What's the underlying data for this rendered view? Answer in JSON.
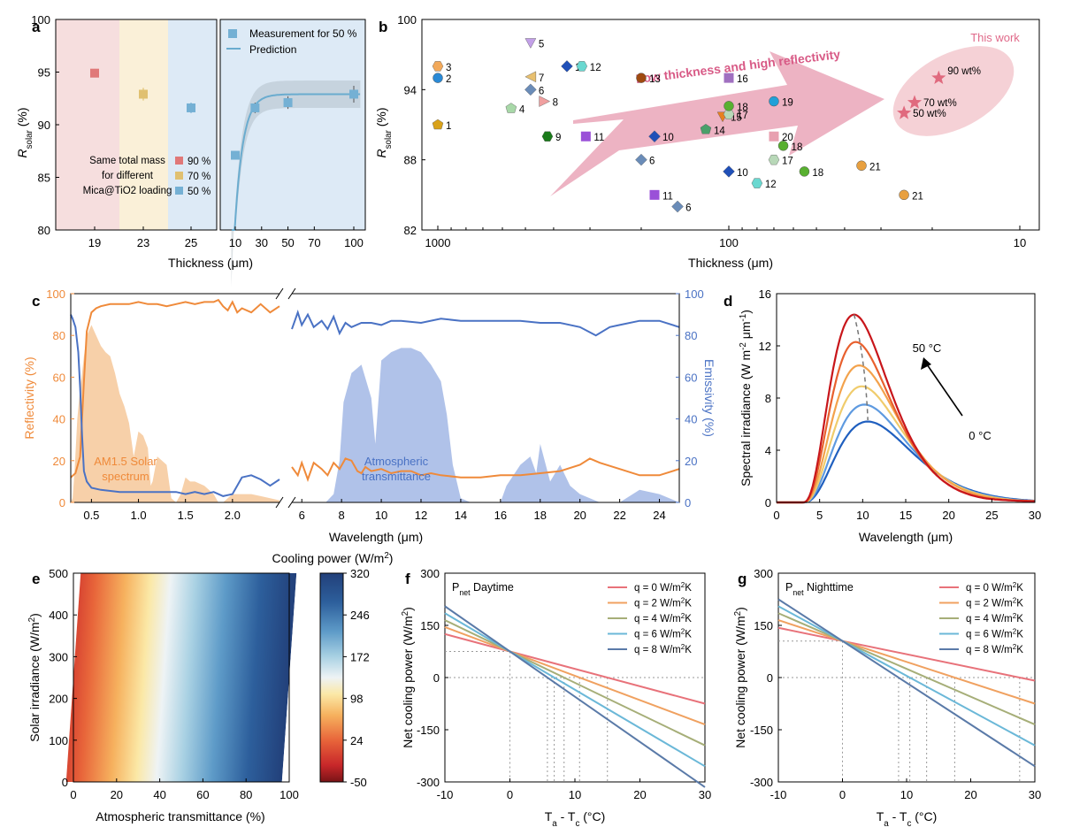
{
  "colors": {
    "orange": "#ef8a3a",
    "blue": "#4a72c4",
    "pink_band": "#f6dede",
    "yellow_band": "#faf0d8",
    "blue_band": "#ddeaf6",
    "cyan": "#6aaccf",
    "marker_red": "#e07878",
    "marker_yellow": "#e0c070",
    "marker_blue": "#74b0d4",
    "arrow_pink": "#e8a0b4",
    "star": "#e06a7e"
  },
  "panel_labels": [
    "a",
    "b",
    "c",
    "d",
    "e",
    "f",
    "g"
  ],
  "chart_data": [
    {
      "id": "a",
      "type": "scatter",
      "left": {
        "xlabel": "Thickness (μm)",
        "ylabel": "R̄solar (%)",
        "ylim": [
          80,
          100
        ],
        "yticks": [
          "80",
          "85",
          "90",
          "95",
          "100"
        ],
        "categories": [
          "19",
          "23",
          "25"
        ],
        "series": [
          {
            "name": "90 %",
            "x": 19,
            "y": 94.9,
            "err": 0.4
          },
          {
            "name": "70 %",
            "x": 23,
            "y": 92.9,
            "err": 0.6
          },
          {
            "name": "50 %",
            "x": 25,
            "y": 91.6,
            "err": 0.5
          }
        ],
        "legend_lines": [
          "Same total mass",
          "for  different",
          "Mica@TiO2 loading"
        ]
      },
      "right": {
        "xticks": [
          "10",
          "30",
          "50",
          "70",
          "100"
        ],
        "measurement": {
          "name": "Measurement for 50 %",
          "x": [
            10,
            25,
            50,
            100
          ],
          "y": [
            87.1,
            91.6,
            92.1,
            92.9
          ],
          "err": [
            0.4,
            0.5,
            0.6,
            0.8
          ]
        },
        "prediction_name": "Prediction"
      }
    },
    {
      "id": "b",
      "type": "scatter",
      "xlabel": "Thickness (μm)",
      "ylabel": "R̄solar (%)",
      "xscale": "log",
      "xlim": [
        1000,
        10
      ],
      "ylim": [
        82,
        100
      ],
      "xticks": [
        "1000",
        "100",
        "10"
      ],
      "yticks": [
        "82",
        "88",
        "94",
        "100"
      ],
      "arrow_text": "Low thickness and high reflectivity",
      "this_work": "This work",
      "points": [
        {
          "label": "1",
          "x": 1000,
          "y": 91.0,
          "color": "#d9a21a",
          "shape": "pentagon"
        },
        {
          "label": "2",
          "x": 1000,
          "y": 95.0,
          "color": "#2a8ad6",
          "shape": "circle"
        },
        {
          "label": "3",
          "x": 1000,
          "y": 96.0,
          "color": "#f2a95a",
          "shape": "hexagon"
        },
        {
          "label": "4",
          "x": 560,
          "y": 92.4,
          "color": "#a8d8a8",
          "shape": "pentagon"
        },
        {
          "label": "5",
          "x": 480,
          "y": 98.0,
          "color": "#c3a0e8",
          "shape": "tri-down"
        },
        {
          "label": "6",
          "x": 480,
          "y": 94.0,
          "color": "#6a8cb8",
          "shape": "diamond"
        },
        {
          "label": "7",
          "x": 480,
          "y": 95.1,
          "color": "#e8c070",
          "shape": "tri-left"
        },
        {
          "label": "8",
          "x": 430,
          "y": 93.0,
          "color": "#f0a0a0",
          "shape": "tri-right"
        },
        {
          "label": "9",
          "x": 420,
          "y": 90.0,
          "color": "#1a7a1a",
          "shape": "hexagon"
        },
        {
          "label": "10",
          "x": 360,
          "y": 96.0,
          "color": "#2050b8",
          "shape": "diamond"
        },
        {
          "label": "12",
          "x": 320,
          "y": 96.0,
          "color": "#6ad8d0",
          "shape": "hexagon"
        },
        {
          "label": "11",
          "x": 310,
          "y": 90.0,
          "color": "#9a50d8",
          "shape": "square"
        },
        {
          "label": "13",
          "x": 200,
          "y": 95.0,
          "color": "#a04a10",
          "shape": "circle"
        },
        {
          "label": "10",
          "x": 180,
          "y": 90.0,
          "color": "#2050b8",
          "shape": "diamond"
        },
        {
          "label": "6",
          "x": 200,
          "y": 88.0,
          "color": "#6a8cb8",
          "shape": "diamond"
        },
        {
          "label": "11",
          "x": 180,
          "y": 85.0,
          "color": "#9a50d8",
          "shape": "square"
        },
        {
          "label": "6",
          "x": 150,
          "y": 84.0,
          "color": "#6a8cb8",
          "shape": "diamond"
        },
        {
          "label": "16",
          "x": 100,
          "y": 95.0,
          "color": "#a070c0",
          "shape": "square"
        },
        {
          "label": "14",
          "x": 120,
          "y": 90.6,
          "color": "#4aa06a",
          "shape": "pentagon"
        },
        {
          "label": "15",
          "x": 105,
          "y": 91.7,
          "color": "#e88020",
          "shape": "tri-down"
        },
        {
          "label": "17",
          "x": 100,
          "y": 91.9,
          "color": "#b8d8b8",
          "shape": "hexagon"
        },
        {
          "label": "18",
          "x": 100,
          "y": 92.6,
          "color": "#58b030",
          "shape": "circle"
        },
        {
          "label": "10",
          "x": 100,
          "y": 87.0,
          "color": "#2050b8",
          "shape": "diamond"
        },
        {
          "label": "12",
          "x": 80,
          "y": 86.0,
          "color": "#6ad8d0",
          "shape": "hexagon"
        },
        {
          "label": "19",
          "x": 70,
          "y": 93.0,
          "color": "#20a0d8",
          "shape": "circle"
        },
        {
          "label": "20",
          "x": 70,
          "y": 90.0,
          "color": "#e8a0b0",
          "shape": "square"
        },
        {
          "label": "18",
          "x": 65,
          "y": 89.2,
          "color": "#58b030",
          "shape": "circle"
        },
        {
          "label": "17",
          "x": 70,
          "y": 88.0,
          "color": "#b8d8b8",
          "shape": "hexagon"
        },
        {
          "label": "18",
          "x": 55,
          "y": 87.0,
          "color": "#58b030",
          "shape": "circle"
        },
        {
          "label": "21",
          "x": 35,
          "y": 87.5,
          "color": "#e8a040",
          "shape": "circle"
        },
        {
          "label": "21",
          "x": 25,
          "y": 85.0,
          "color": "#e8a040",
          "shape": "circle"
        }
      ],
      "stars": [
        {
          "label": "90 wt%",
          "x": 19,
          "y": 95.0
        },
        {
          "label": "70 wt%",
          "x": 23,
          "y": 92.9
        },
        {
          "label": "50 wt%",
          "x": 25,
          "y": 92.0
        }
      ]
    },
    {
      "id": "c",
      "type": "line",
      "xlabel": "Wavelength (μm)",
      "ylabel_left": "Reflectivity (%)",
      "ylabel_right": "Emissivity (%)",
      "ylim": [
        0,
        100
      ],
      "yticks": [
        "0",
        "20",
        "40",
        "60",
        "80",
        "100"
      ],
      "xticks_left": [
        "0.5",
        "1.0",
        "1.5",
        "2.0"
      ],
      "xticks_right": [
        "6",
        "8",
        "10",
        "12",
        "14",
        "16",
        "18",
        "20",
        "22",
        "24"
      ],
      "solar_label": [
        "AM1.5 Solar",
        "spectrum"
      ],
      "atm_label": [
        "Atmospheric",
        "transmittance"
      ],
      "reflectivity_left": {
        "x": [
          0.28,
          0.33,
          0.38,
          0.42,
          0.45,
          0.5,
          0.55,
          0.6,
          0.7,
          0.8,
          0.9,
          1.0,
          1.1,
          1.2,
          1.3,
          1.4,
          1.5,
          1.6,
          1.7,
          1.8,
          1.85,
          1.9,
          1.95,
          2.0,
          2.05,
          2.1,
          2.2,
          2.3,
          2.4,
          2.5
        ],
        "y": [
          12,
          14,
          22,
          58,
          82,
          91,
          93,
          94,
          95,
          95,
          95,
          96,
          95,
          95,
          94,
          95,
          96,
          95,
          96,
          96,
          97,
          94,
          92,
          96,
          91,
          93,
          91,
          95,
          91,
          94
        ]
      },
      "emissivity_left": {
        "x": [
          0.28,
          0.3,
          0.33,
          0.36,
          0.38,
          0.4,
          0.42,
          0.45,
          0.5,
          0.6,
          0.8,
          1.0,
          1.2,
          1.4,
          1.5,
          1.6,
          1.7,
          1.8,
          1.9,
          2.0,
          2.05,
          2.1,
          2.2,
          2.3,
          2.4,
          2.5
        ],
        "y": [
          90,
          88,
          84,
          72,
          55,
          32,
          15,
          10,
          7,
          6,
          5,
          5,
          5,
          5,
          4,
          5,
          4,
          5,
          3,
          4,
          8,
          12,
          13,
          11,
          8,
          11
        ]
      },
      "reflectivity_right": {
        "x": [
          5.5,
          5.8,
          6.0,
          6.3,
          6.6,
          7.0,
          7.3,
          7.6,
          7.9,
          8.2,
          8.5,
          8.8,
          9.0,
          9.2,
          9.5,
          10,
          10.5,
          11,
          11.5,
          12,
          12.5,
          13,
          14,
          15,
          16,
          17,
          18,
          19,
          20,
          20.5,
          21,
          22,
          23,
          24,
          25
        ],
        "y": [
          17,
          13,
          19,
          11,
          19,
          16,
          13,
          19,
          16,
          21,
          20,
          15,
          14,
          17,
          15,
          16,
          14,
          15,
          15,
          13,
          14,
          13,
          12,
          12,
          13,
          13,
          14,
          15,
          18,
          21,
          19,
          16,
          13,
          13,
          16
        ]
      },
      "emissivity_right": {
        "x": [
          5.5,
          5.8,
          6.0,
          6.3,
          6.6,
          7.0,
          7.3,
          7.6,
          7.9,
          8.2,
          8.5,
          9,
          9.5,
          10,
          10.5,
          11,
          12,
          13,
          14,
          15,
          16,
          17,
          18,
          19,
          20,
          20.4,
          20.8,
          21.5,
          22,
          23,
          24,
          25
        ],
        "y": [
          83,
          91,
          85,
          90,
          84,
          87,
          83,
          89,
          81,
          86,
          84,
          86,
          86,
          85,
          87,
          87,
          86,
          88,
          87,
          87,
          87,
          87,
          86,
          86,
          84,
          82,
          80,
          84,
          85,
          87,
          87,
          84
        ]
      },
      "solar_spectrum": {
        "x": [
          0.28,
          0.3,
          0.32,
          0.35,
          0.38,
          0.4,
          0.42,
          0.45,
          0.5,
          0.55,
          0.6,
          0.65,
          0.7,
          0.75,
          0.8,
          0.85,
          0.9,
          0.95,
          1.0,
          1.05,
          1.1,
          1.13,
          1.15,
          1.2,
          1.25,
          1.3,
          1.35,
          1.4,
          1.45,
          1.5,
          1.55,
          1.6,
          1.7,
          1.8,
          1.85,
          1.9,
          1.95,
          2.0,
          2.1,
          2.2,
          2.3,
          2.4,
          2.5
        ],
        "y": [
          0,
          2,
          15,
          40,
          55,
          62,
          70,
          80,
          85,
          80,
          75,
          72,
          70,
          62,
          52,
          46,
          38,
          22,
          34,
          32,
          26,
          8,
          10,
          22,
          20,
          18,
          2,
          0,
          4,
          12,
          10,
          10,
          8,
          4,
          0,
          0,
          2,
          4,
          4,
          4,
          3,
          2,
          1
        ]
      },
      "atm_transmittance": {
        "x": [
          5.5,
          6.5,
          7.2,
          7.6,
          7.9,
          8.1,
          8.5,
          9,
          9.5,
          9.7,
          10,
          10.5,
          11,
          11.5,
          12,
          12.5,
          13,
          13.3,
          13.6,
          14,
          14.5,
          15,
          16,
          16.3,
          17,
          17.5,
          17.8,
          18,
          18.5,
          19,
          19.5,
          20,
          21,
          22,
          23,
          24,
          25
        ],
        "y": [
          0,
          0,
          0,
          4,
          20,
          48,
          62,
          66,
          50,
          28,
          68,
          72,
          74,
          74,
          72,
          66,
          58,
          42,
          18,
          2,
          0,
          0,
          0,
          8,
          18,
          22,
          14,
          28,
          10,
          18,
          8,
          4,
          0,
          0,
          6,
          4,
          0
        ]
      }
    },
    {
      "id": "d",
      "type": "line",
      "xlabel": "Wavelength (μm)",
      "ylabel": "Spectral irradiance (W m⁻² μm⁻¹)",
      "xlim": [
        0,
        30
      ],
      "ylim": [
        0,
        16
      ],
      "xticks": [
        "0",
        "5",
        "10",
        "15",
        "20",
        "25",
        "30"
      ],
      "yticks": [
        "0",
        "4",
        "8",
        "12",
        "16"
      ],
      "label_hot": "50 °C",
      "label_cold": "0 °C",
      "series": [
        {
          "T": 0,
          "peak": 6.2,
          "lam": 10.6,
          "color": "#1f5fbf"
        },
        {
          "T": 10,
          "peak": 7.5,
          "lam": 10.2,
          "color": "#5e9ae0"
        },
        {
          "T": 20,
          "peak": 8.9,
          "lam": 9.9,
          "color": "#f0cc6c"
        },
        {
          "T": 30,
          "peak": 10.5,
          "lam": 9.6,
          "color": "#f3a24c"
        },
        {
          "T": 40,
          "peak": 12.3,
          "lam": 9.2,
          "color": "#e8602e"
        },
        {
          "T": 50,
          "peak": 14.4,
          "lam": 9.0,
          "color": "#c8161b"
        }
      ]
    },
    {
      "id": "e",
      "type": "heatmap",
      "title": "Cooling power (W/m²)",
      "xlabel": "Atmospheric transmittance (%)",
      "ylabel": "Solar irradiance (W/m²)",
      "xlim": [
        0,
        100
      ],
      "ylim": [
        0,
        500
      ],
      "xticks": [
        "0",
        "20",
        "40",
        "60",
        "80",
        "100"
      ],
      "yticks": [
        "0",
        "100",
        "200",
        "300",
        "400",
        "500"
      ],
      "colorbar_ticks": [
        "-50",
        "24",
        "98",
        "172",
        "246",
        "320"
      ],
      "colorbar_range": [
        -50,
        320
      ],
      "colormap": [
        "#7a1416",
        "#c8272a",
        "#e8653a",
        "#f6b15e",
        "#fbe8a6",
        "#eef3f5",
        "#a9d1e3",
        "#5e9bc8",
        "#2d5f9c",
        "#22407a"
      ]
    },
    {
      "id": "f",
      "type": "line",
      "title": "Pnet Daytime",
      "xlabel": "Ta - Tc (°C)",
      "ylabel": "Net cooling power (W/m²)",
      "xlim": [
        -10,
        30
      ],
      "ylim": [
        -300,
        300
      ],
      "xticks": [
        "-10",
        "0",
        "10",
        "20",
        "30"
      ],
      "yticks": [
        "-300",
        "-150",
        "0",
        "150",
        "300"
      ],
      "p0": 75,
      "series": [
        {
          "name": "q = 0 W/m²K",
          "h": 5.0,
          "color": "#e8727a"
        },
        {
          "name": "q = 2 W/m²K",
          "h": 7.0,
          "color": "#f0a160"
        },
        {
          "name": "q = 4 W/m²K",
          "h": 9.0,
          "color": "#a6ae78"
        },
        {
          "name": "q = 6 W/m²K",
          "h": 11.0,
          "color": "#6bb8d8"
        },
        {
          "name": "q = 8 W/m²K",
          "h": 13.0,
          "color": "#5a7aa8"
        }
      ]
    },
    {
      "id": "g",
      "type": "line",
      "title": "Pnet Nighttime",
      "xlabel": "Ta - Tc (°C)",
      "ylabel": "Net cooling power (W/m²)",
      "xlim": [
        -10,
        30
      ],
      "ylim": [
        -300,
        300
      ],
      "xticks": [
        "-10",
        "0",
        "10",
        "20",
        "30"
      ],
      "yticks": [
        "-300",
        "-150",
        "0",
        "150",
        "300"
      ],
      "p0": 105,
      "series": [
        {
          "name": "q = 0 W/m²K",
          "h": 3.8,
          "color": "#e8727a"
        },
        {
          "name": "q = 2 W/m²K",
          "h": 6.0,
          "color": "#f0a160"
        },
        {
          "name": "q = 4 W/m²K",
          "h": 8.0,
          "color": "#a6ae78"
        },
        {
          "name": "q = 6 W/m²K",
          "h": 10.0,
          "color": "#6bb8d8"
        },
        {
          "name": "q = 8 W/m²K",
          "h": 12.0,
          "color": "#5a7aa8"
        }
      ]
    }
  ]
}
